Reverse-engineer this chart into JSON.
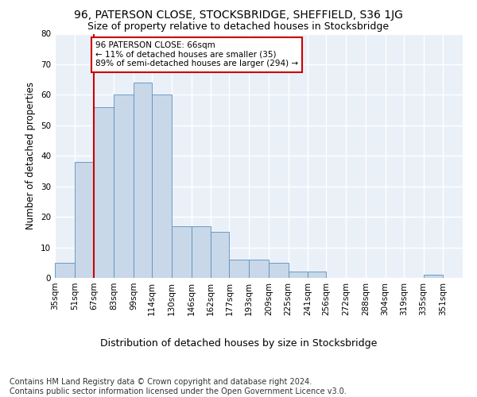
{
  "title1": "96, PATERSON CLOSE, STOCKSBRIDGE, SHEFFIELD, S36 1JG",
  "title2": "Size of property relative to detached houses in Stocksbridge",
  "xlabel": "Distribution of detached houses by size in Stocksbridge",
  "ylabel": "Number of detached properties",
  "footnote": "Contains HM Land Registry data © Crown copyright and database right 2024.\nContains public sector information licensed under the Open Government Licence v3.0.",
  "bin_labels": [
    "35sqm",
    "51sqm",
    "67sqm",
    "83sqm",
    "99sqm",
    "114sqm",
    "130sqm",
    "146sqm",
    "162sqm",
    "177sqm",
    "193sqm",
    "209sqm",
    "225sqm",
    "241sqm",
    "256sqm",
    "272sqm",
    "288sqm",
    "304sqm",
    "319sqm",
    "335sqm",
    "351sqm"
  ],
  "bin_edges": [
    35,
    51,
    67,
    83,
    99,
    114,
    130,
    146,
    162,
    177,
    193,
    209,
    225,
    241,
    256,
    272,
    288,
    304,
    319,
    335,
    351,
    367
  ],
  "bar_heights": [
    5,
    38,
    56,
    60,
    64,
    60,
    17,
    17,
    15,
    6,
    6,
    5,
    2,
    2,
    0,
    0,
    0,
    0,
    0,
    1,
    0
  ],
  "bar_color": "#c8d8e8",
  "bar_edgecolor": "#5a8fbf",
  "vline_x": 67,
  "vline_color": "#cc0000",
  "annotation_text": "96 PATERSON CLOSE: 66sqm\n← 11% of detached houses are smaller (35)\n89% of semi-detached houses are larger (294) →",
  "annotation_box_color": "#ffffff",
  "annotation_box_edgecolor": "#cc0000",
  "ylim": [
    0,
    80
  ],
  "yticks": [
    0,
    10,
    20,
    30,
    40,
    50,
    60,
    70,
    80
  ],
  "bg_color": "#eaf0f8",
  "grid_color": "#ffffff",
  "title1_fontsize": 10,
  "title2_fontsize": 9,
  "xlabel_fontsize": 9,
  "ylabel_fontsize": 8.5,
  "tick_fontsize": 7.5,
  "footnote_fontsize": 7,
  "annot_fontsize": 7.5
}
